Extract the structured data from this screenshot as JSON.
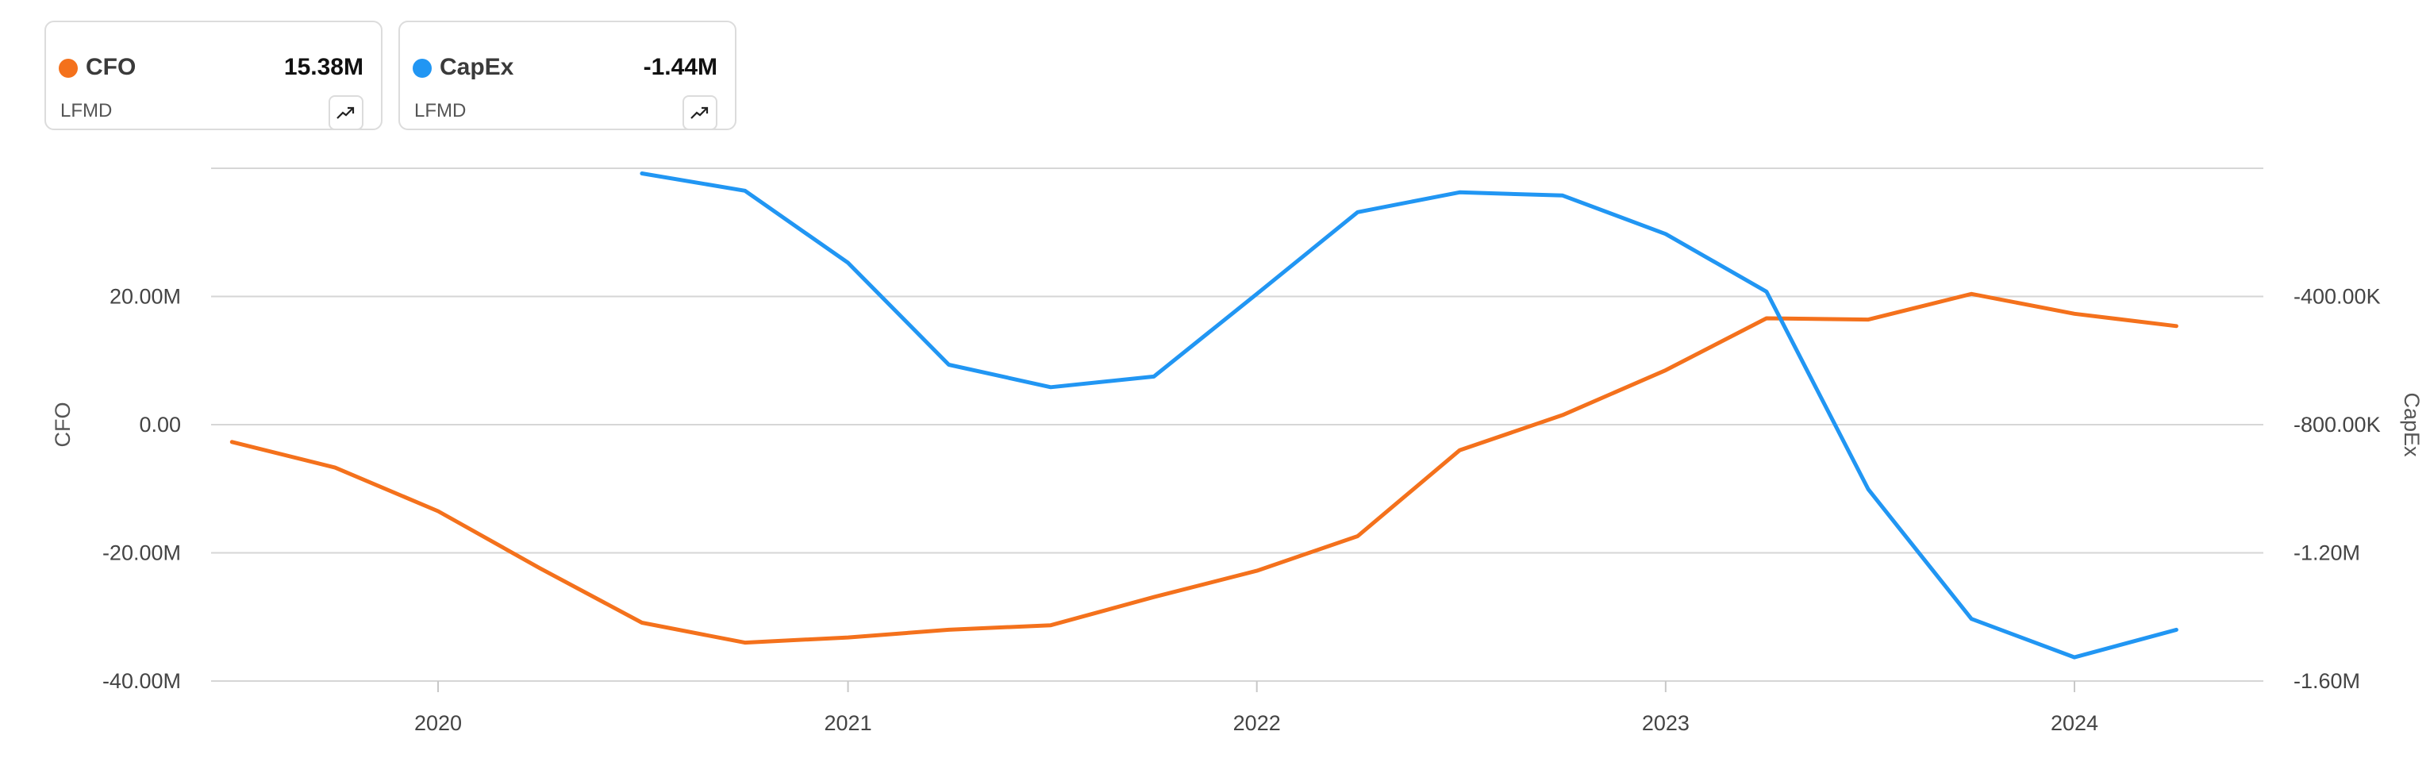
{
  "legend": {
    "cards": [
      {
        "name": "CFO",
        "value": "15.38M",
        "ticker": "LFMD",
        "color": "#f4711c",
        "icon": "trend-up-icon"
      },
      {
        "name": "CapEx",
        "value": "-1.44M",
        "ticker": "LFMD",
        "color": "#2196f3",
        "icon": "trend-up-icon"
      }
    ]
  },
  "chart_data": {
    "type": "line",
    "x": [
      "2019-07-01",
      "2019-10-01",
      "2020-01-01",
      "2020-04-01",
      "2020-07-01",
      "2020-10-01",
      "2021-01-01",
      "2021-04-01",
      "2021-07-01",
      "2021-10-01",
      "2022-01-01",
      "2022-04-01",
      "2022-07-01",
      "2022-10-01",
      "2023-01-01",
      "2023-04-01",
      "2023-07-01",
      "2023-10-01",
      "2024-01-01",
      "2024-04-01"
    ],
    "x_tick_labels": [
      "2020",
      "2021",
      "2022",
      "2023",
      "2024"
    ],
    "grid": true,
    "series": [
      {
        "name": "CFO",
        "axis": "left",
        "color": "#f4711c",
        "values": [
          -2.7,
          -6.7,
          -13.5,
          -22.4,
          -30.9,
          -34.0,
          -33.2,
          -32.0,
          -31.3,
          -26.9,
          -22.8,
          -17.4,
          -4.0,
          1.5,
          8.5,
          16.6,
          16.4,
          20.4,
          17.3,
          15.38
        ]
      },
      {
        "name": "CapEx",
        "axis": "right",
        "color": "#2196f3",
        "values": [
          null,
          null,
          null,
          null,
          -16,
          -70,
          -295,
          -613,
          -683,
          -650,
          -392,
          -137,
          -75,
          -85,
          -205,
          -385,
          -1002,
          -1406,
          -1526,
          -1440
        ]
      }
    ],
    "y_left": {
      "label": "CFO",
      "min": -40,
      "max": 40,
      "ticks": [
        -40,
        -20,
        0,
        20
      ],
      "tick_labels": [
        "-40.00M",
        "-20.00M",
        "0.00",
        "20.00M"
      ]
    },
    "y_right": {
      "label": "CapEx",
      "min": -1600,
      "max": 0,
      "ticks": [
        -1600,
        -1200,
        -800,
        -400
      ],
      "tick_labels": [
        "-1.60M",
        "-1.20M",
        "-800.00K",
        "-400.00K"
      ]
    }
  }
}
